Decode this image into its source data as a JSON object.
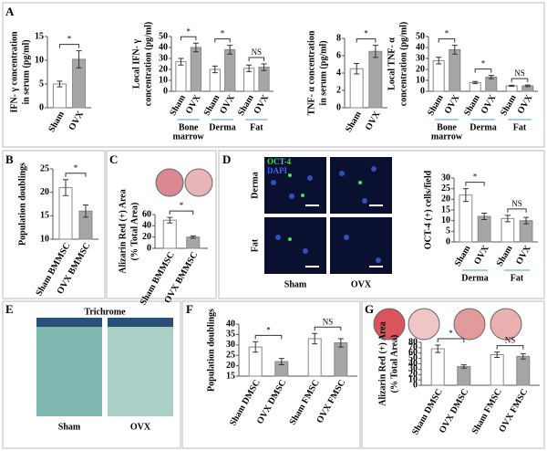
{
  "panels": [
    "A",
    "B",
    "C",
    "D",
    "E",
    "F",
    "G"
  ],
  "micrograph_D": {
    "stains": [
      "OCT-4",
      "DAPI"
    ],
    "rows": [
      "Derma",
      "Fat"
    ],
    "columns": [
      "Sham",
      "OVX"
    ]
  },
  "micrograph_E": {
    "title": "Trichrome",
    "columns": [
      "Sham",
      "OVX"
    ]
  },
  "chart_data": [
    {
      "type": "bar",
      "ylabel": [
        "IFN- γ concentration",
        "in serum (pg/ml)"
      ],
      "categories": [
        "Sham",
        "OVX"
      ],
      "values": [
        5,
        10.2
      ],
      "errors": [
        0.6,
        1.8
      ],
      "colors": [
        "#ffffff",
        "#a6a6a6"
      ],
      "ylim": [
        0,
        15
      ],
      "yticks": [
        0,
        5,
        10,
        15
      ],
      "significance": [
        "*"
      ]
    },
    {
      "type": "bar",
      "ylabel": [
        "Local IFN- γ",
        "concentration (pg/ml)"
      ],
      "categories": [
        "Sham",
        "OVX",
        "Sham",
        "OVX",
        "Sham",
        "OVX"
      ],
      "groups": [
        [
          "Bone",
          "marrow"
        ],
        [
          "Derma"
        ],
        [
          "Fat"
        ]
      ],
      "values": [
        27,
        40,
        20,
        38,
        21,
        22
      ],
      "errors": [
        3,
        4,
        3,
        4,
        3,
        3
      ],
      "colors": [
        "#ffffff",
        "#a6a6a6",
        "#ffffff",
        "#a6a6a6",
        "#ffffff",
        "#a6a6a6"
      ],
      "ylim": [
        0,
        50
      ],
      "yticks": [
        0,
        10,
        20,
        30,
        40,
        50
      ],
      "significance": [
        "*",
        "*",
        "NS"
      ]
    },
    {
      "type": "bar",
      "ylabel": [
        "TNF- α concentration",
        "in serum (pg/ml)"
      ],
      "categories": [
        "Sham",
        "OVX"
      ],
      "values": [
        4.5,
        6.5
      ],
      "errors": [
        0.6,
        0.7
      ],
      "colors": [
        "#ffffff",
        "#a6a6a6"
      ],
      "ylim": [
        0,
        8
      ],
      "yticks": [
        0,
        2,
        4,
        6,
        8
      ],
      "significance": [
        "*"
      ]
    },
    {
      "type": "bar",
      "ylabel": [
        "Local TNF- α",
        "concentration (pg/ml)"
      ],
      "categories": [
        "Sham",
        "OVX",
        "Sham",
        "OVX",
        "Sham",
        "OVX"
      ],
      "groups": [
        [
          "Bone",
          "marrow"
        ],
        [
          "Derma"
        ],
        [
          "Fat"
        ]
      ],
      "values": [
        28,
        38,
        8,
        13,
        5,
        5
      ],
      "errors": [
        3,
        4,
        1,
        1.5,
        0.5,
        0.7
      ],
      "colors": [
        "#ffffff",
        "#a6a6a6",
        "#ffffff",
        "#a6a6a6",
        "#ffffff",
        "#a6a6a6"
      ],
      "ylim": [
        0,
        50
      ],
      "yticks": [
        0,
        10,
        20,
        30,
        40,
        50
      ],
      "significance": [
        "*",
        "*",
        "NS"
      ]
    },
    {
      "type": "bar",
      "ylabel": [
        "Population doublings"
      ],
      "categories": [
        "Sham BMMSC",
        "OVX BMMSC"
      ],
      "values": [
        21,
        16
      ],
      "errors": [
        1.7,
        1.3
      ],
      "colors": [
        "#ffffff",
        "#a6a6a6"
      ],
      "ylim": [
        10,
        25
      ],
      "yticks": [
        10,
        15,
        20,
        25
      ],
      "significance": [
        "*"
      ]
    },
    {
      "type": "bar",
      "ylabel": [
        "Alizarin Red (+) Area",
        "(% Total Area)"
      ],
      "categories": [
        "Sham BMMSC",
        "OVX BMMSC"
      ],
      "values": [
        50,
        20
      ],
      "errors": [
        5,
        2
      ],
      "colors": [
        "#ffffff",
        "#a6a6a6"
      ],
      "ylim": [
        0,
        60
      ],
      "yticks": [
        0,
        20,
        40,
        60
      ],
      "significance": [
        "*"
      ]
    },
    {
      "type": "bar",
      "ylabel": [
        "OCT-4 (+) cells/field"
      ],
      "categories": [
        "Sham",
        "OVX",
        "Sham",
        "OVX"
      ],
      "groups": [
        [
          "Derma"
        ],
        [
          "Fat"
        ]
      ],
      "values": [
        22,
        12,
        11,
        10
      ],
      "errors": [
        3,
        1.5,
        1.5,
        1.5
      ],
      "colors": [
        "#ffffff",
        "#a6a6a6",
        "#ffffff",
        "#a6a6a6"
      ],
      "ylim": [
        0,
        30
      ],
      "yticks": [
        0,
        5,
        10,
        15,
        20,
        25,
        30
      ],
      "significance": [
        "*",
        "NS"
      ]
    },
    {
      "type": "bar",
      "ylabel": [
        "Population doublings"
      ],
      "categories": [
        "Sham DMSC",
        "OVX DMSC",
        "Sham FMSC",
        "OVX FMSC"
      ],
      "values": [
        29,
        22,
        33,
        31
      ],
      "errors": [
        2.5,
        1.5,
        2.5,
        2
      ],
      "colors": [
        "#ffffff",
        "#a6a6a6",
        "#ffffff",
        "#a6a6a6"
      ],
      "ylim": [
        15,
        40
      ],
      "yticks": [
        15,
        20,
        25,
        30,
        35,
        40
      ],
      "significance": [
        "*",
        "NS"
      ]
    },
    {
      "type": "bar",
      "ylabel": [
        "Alizarin Red (+) Area",
        "(% Total Area)"
      ],
      "categories": [
        "Sham DMSC",
        "OVX DMSC",
        "Sham FMSC",
        "OVX FMSC"
      ],
      "values": [
        68,
        35,
        57,
        54
      ],
      "errors": [
        7,
        3,
        5,
        5
      ],
      "colors": [
        "#ffffff",
        "#a6a6a6",
        "#ffffff",
        "#a6a6a6"
      ],
      "ylim": [
        0,
        80
      ],
      "yticks": [
        0,
        10,
        20,
        30,
        40,
        50,
        60,
        70,
        80
      ],
      "significance": [
        "*",
        "NS"
      ]
    }
  ]
}
